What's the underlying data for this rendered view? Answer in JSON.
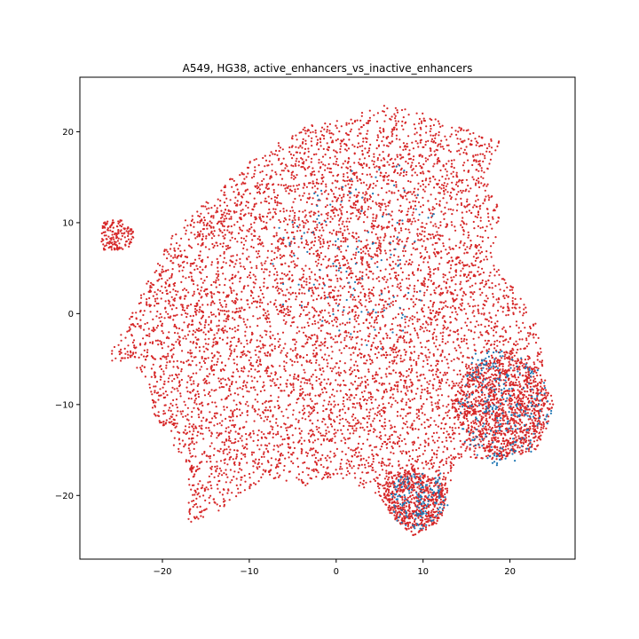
{
  "chart_data": {
    "type": "scatter",
    "title": "A549, HG38, active_enhancers_vs_inactive_enhancers",
    "xlabel": "",
    "ylabel": "",
    "xlim": [
      -29.5,
      27.5
    ],
    "ylim": [
      -27,
      26
    ],
    "xticks": [
      -20,
      -10,
      0,
      10,
      20
    ],
    "yticks": [
      -20,
      -10,
      0,
      10,
      20
    ],
    "xtick_labels": [
      "−20",
      "−10",
      "0",
      "10",
      "20"
    ],
    "ytick_labels": [
      "−20",
      "−10",
      "0",
      "10",
      "20"
    ],
    "grid": false,
    "legend": "none",
    "series": [
      {
        "color": "#d62728",
        "regions": [
          {
            "shape": "blob",
            "points": [
              [
                -27,
                -6
              ],
              [
                -24,
                -1
              ],
              [
                -21,
                5
              ],
              [
                -18,
                10
              ],
              [
                -14,
                13
              ],
              [
                -11,
                16
              ],
              [
                -8,
                18
              ],
              [
                -5,
                20
              ],
              [
                -2,
                21
              ],
              [
                2,
                22
              ],
              [
                6,
                23
              ],
              [
                10,
                22
              ],
              [
                13,
                21
              ],
              [
                16,
                20
              ],
              [
                19,
                19
              ],
              [
                17,
                15
              ],
              [
                19,
                12
              ],
              [
                18,
                6
              ],
              [
                21,
                2
              ],
              [
                23,
                -1
              ],
              [
                24,
                -6
              ],
              [
                25,
                -10
              ],
              [
                23,
                -15
              ],
              [
                19,
                -16
              ],
              [
                14,
                -16
              ],
              [
                13,
                -19
              ],
              [
                11,
                -23
              ],
              [
                8,
                -24
              ],
              [
                5,
                -20
              ],
              [
                0,
                -18
              ],
              [
                -4,
                -19
              ],
              [
                -8,
                -18
              ],
              [
                -11,
                -20
              ],
              [
                -14,
                -22
              ],
              [
                -17,
                -23
              ],
              [
                -17,
                -17
              ],
              [
                -19,
                -14
              ],
              [
                -21,
                -11
              ],
              [
                -22,
                -7
              ],
              [
                -24,
                -5
              ]
            ],
            "count": 7000
          },
          {
            "shape": "blob",
            "points": [
              [
                -27,
                7
              ],
              [
                -27,
                10
              ],
              [
                -25,
                10.5
              ],
              [
                -23,
                9
              ],
              [
                -24,
                7
              ],
              [
                -26,
                7
              ]
            ],
            "count": 160
          },
          {
            "shape": "blob",
            "points": [
              [
                6,
                -18
              ],
              [
                9,
                -17
              ],
              [
                13,
                -19
              ],
              [
                12,
                -23
              ],
              [
                9,
                -24.5
              ],
              [
                6,
                -22
              ],
              [
                5,
                -20
              ]
            ],
            "count": 500
          },
          {
            "shape": "blob",
            "points": [
              [
                15,
                -6
              ],
              [
                20,
                -4
              ],
              [
                24,
                -7
              ],
              [
                25,
                -11
              ],
              [
                23,
                -15
              ],
              [
                19,
                -16
              ],
              [
                15,
                -14
              ],
              [
                13,
                -10
              ]
            ],
            "count": 900
          }
        ]
      },
      {
        "color": "#1f77b4",
        "regions": [
          {
            "shape": "blob",
            "points": [
              [
                16,
                -4
              ],
              [
                21,
                -4
              ],
              [
                24,
                -7
              ],
              [
                25,
                -11
              ],
              [
                23,
                -15
              ],
              [
                19,
                -17
              ],
              [
                15,
                -15
              ],
              [
                14,
                -10
              ]
            ],
            "count": 260
          },
          {
            "shape": "blob",
            "points": [
              [
                7,
                -18
              ],
              [
                12,
                -17
              ],
              [
                13,
                -21
              ],
              [
                10,
                -24
              ],
              [
                7,
                -23
              ],
              [
                6,
                -20
              ]
            ],
            "count": 160
          },
          {
            "shape": "blob",
            "points": [
              [
                -2,
                15
              ],
              [
                8,
                17
              ],
              [
                12,
                10
              ],
              [
                10,
                0
              ],
              [
                4,
                -5
              ],
              [
                -6,
                0
              ],
              [
                -8,
                8
              ]
            ],
            "count": 120
          }
        ]
      }
    ]
  }
}
